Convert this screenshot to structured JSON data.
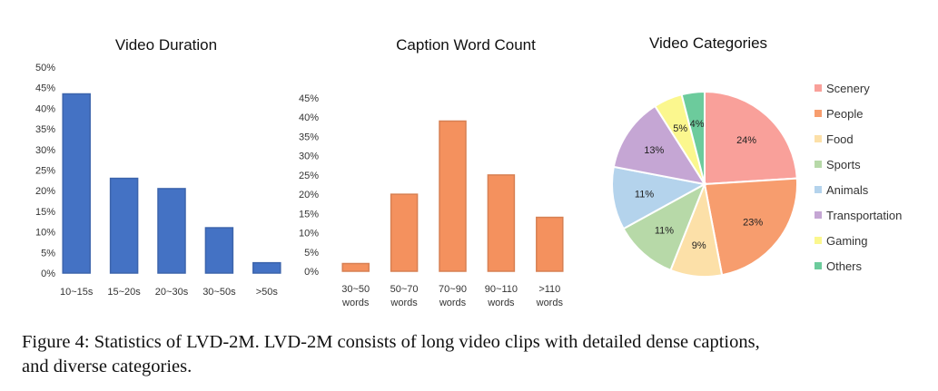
{
  "chart_data": [
    {
      "type": "bar",
      "title": "Video Duration",
      "categories": [
        "10~15s",
        "15~20s",
        "20~30s",
        "30~50s",
        ">50s"
      ],
      "values": [
        43.5,
        23,
        20.5,
        11,
        2.5
      ],
      "yticks": [
        "0%",
        "5%",
        "10%",
        "15%",
        "20%",
        "25%",
        "30%",
        "35%",
        "40%",
        "45%",
        "50%"
      ],
      "ylim": [
        0,
        50
      ],
      "color": "#4472C4"
    },
    {
      "type": "bar",
      "title": "Caption Word Count",
      "categories": [
        [
          "30~50",
          "words"
        ],
        [
          "50~70",
          "words"
        ],
        [
          "70~90",
          "words"
        ],
        [
          "90~110",
          "words"
        ],
        [
          ">110",
          "words"
        ]
      ],
      "values": [
        2,
        20,
        39,
        25,
        14
      ],
      "yticks": [
        "0%",
        "5%",
        "10%",
        "15%",
        "20%",
        "25%",
        "30%",
        "35%",
        "40%",
        "45%"
      ],
      "ylim": [
        0,
        45
      ],
      "color": "#F4915E"
    },
    {
      "type": "pie",
      "title": "Video Categories",
      "slices": [
        {
          "label": "Scenery",
          "value": 24,
          "text": "24%",
          "color": "#F9A09A"
        },
        {
          "label": "People",
          "value": 23,
          "text": "23%",
          "color": "#F79D6E"
        },
        {
          "label": "Food",
          "value": 9,
          "text": "9%",
          "color": "#FCE0A8"
        },
        {
          "label": "Sports",
          "value": 11,
          "text": "11%",
          "color": "#B7D9A8"
        },
        {
          "label": "Animals",
          "value": 11,
          "text": "11%",
          "color": "#B4D3EC"
        },
        {
          "label": "Transportation",
          "value": 13,
          "text": "13%",
          "color": "#C5A6D4"
        },
        {
          "label": "Gaming",
          "value": 5,
          "text": "5%",
          "color": "#FBF78E"
        },
        {
          "label": "Others",
          "value": 4,
          "text": "4%",
          "color": "#6CCB9C"
        }
      ],
      "legend_position": "right"
    }
  ],
  "caption": {
    "line1": "Figure 4: Statistics of LVD-2M. LVD-2M consists of long video clips with detailed dense captions,",
    "line2": "and diverse categories."
  }
}
